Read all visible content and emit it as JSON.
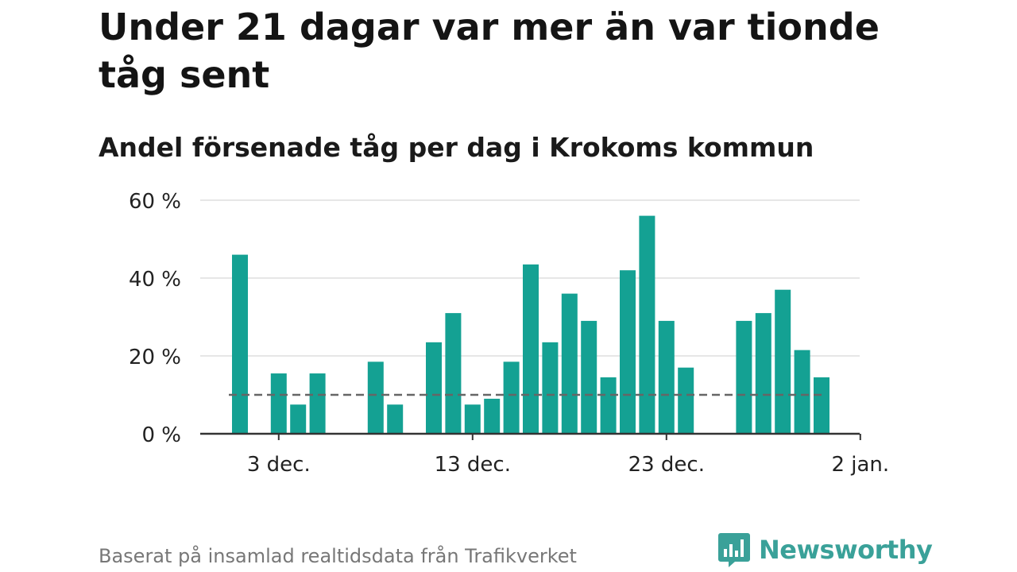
{
  "header": {
    "title": "Under 21 dagar var mer än var tionde tåg sent",
    "subtitle": "Andel försenade tåg per dag i Krokoms kommun"
  },
  "footer": {
    "source": "Baserat på insamlad realtidsdata från Trafikverket",
    "brand": "Newsworthy",
    "brand_icon": "bar-chart-logo-icon"
  },
  "colors": {
    "bar": "#14a193",
    "reference_line": "#666666",
    "grid": "#dddddd",
    "axis": "#333333",
    "brand": "#3aa199"
  },
  "chart_data": {
    "type": "bar",
    "title": "Under 21 dagar var mer än var tionde tåg sent",
    "subtitle": "Andel försenade tåg per dag i Krokoms kommun",
    "x": [
      "2023-12-01",
      "2023-12-02",
      "2023-12-03",
      "2023-12-04",
      "2023-12-05",
      "2023-12-06",
      "2023-12-07",
      "2023-12-08",
      "2023-12-09",
      "2023-12-10",
      "2023-12-11",
      "2023-12-12",
      "2023-12-13",
      "2023-12-14",
      "2023-12-15",
      "2023-12-16",
      "2023-12-17",
      "2023-12-18",
      "2023-12-19",
      "2023-12-20",
      "2023-12-21",
      "2023-12-22",
      "2023-12-23",
      "2023-12-24",
      "2023-12-25",
      "2023-12-26",
      "2023-12-27",
      "2023-12-28",
      "2023-12-29",
      "2023-12-30",
      "2023-12-31"
    ],
    "values": [
      46,
      0,
      15.5,
      7.5,
      15.5,
      0,
      0,
      18.5,
      7.5,
      0,
      23.5,
      31,
      7.5,
      9,
      18.5,
      43.5,
      23.5,
      36,
      29,
      14.5,
      42,
      56,
      29,
      17,
      0,
      0,
      29,
      31,
      37,
      21.5,
      14.5
    ],
    "reference_line": {
      "value": 10,
      "style": "dashed"
    },
    "ylim": [
      0,
      60
    ],
    "yticks": [
      0,
      20,
      40,
      60
    ],
    "ytick_labels": [
      "0 %",
      "20 %",
      "40 %",
      "60 %"
    ],
    "xticks": [
      "2023-12-03",
      "2023-12-13",
      "2023-12-23",
      "2024-01-02"
    ],
    "xtick_labels": [
      "3 dec.",
      "13 dec.",
      "23 dec.",
      "2 jan."
    ],
    "xlabel": "",
    "ylabel": "",
    "grid": "horizontal",
    "legend": "none"
  }
}
